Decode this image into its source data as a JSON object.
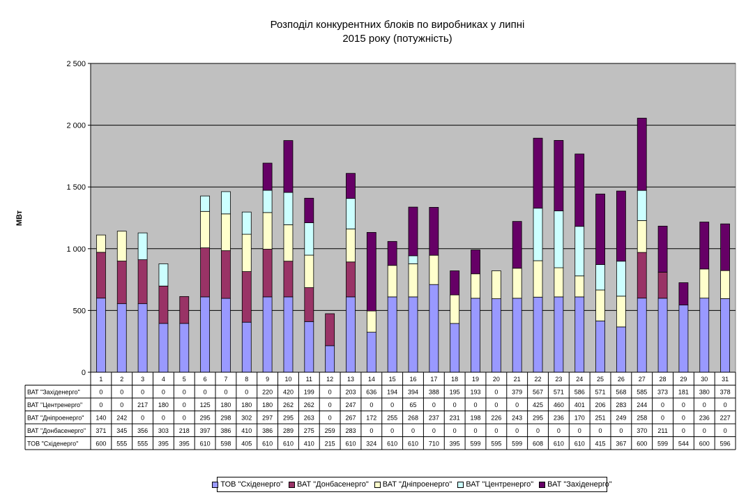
{
  "chart_data": {
    "type": "bar",
    "stacked": true,
    "title": "Розподіл конкурентних блоків по виробниках у липні\n2015 року (потужність)",
    "ylabel": "МВт",
    "xlabel": "",
    "ylim": [
      0,
      2500
    ],
    "yticks": [
      0,
      500,
      1000,
      1500,
      2000,
      2500
    ],
    "ytick_labels": [
      "0",
      "500",
      "1 000",
      "1 500",
      "2 000",
      "2 500"
    ],
    "grid": true,
    "legend_position": "bottom",
    "categories": [
      "1",
      "2",
      "3",
      "4",
      "5",
      "6",
      "7",
      "8",
      "9",
      "10",
      "11",
      "12",
      "13",
      "14",
      "15",
      "16",
      "17",
      "18",
      "19",
      "20",
      "21",
      "22",
      "23",
      "24",
      "25",
      "26",
      "27",
      "28",
      "29",
      "30",
      "31"
    ],
    "series": [
      {
        "name": "ТОВ \"Східенерго\"",
        "color": "#9999ff",
        "values": [
          600,
          555,
          555,
          395,
          395,
          610,
          598,
          405,
          610,
          610,
          410,
          215,
          610,
          324,
          610,
          610,
          710,
          395,
          599,
          595,
          599,
          608,
          610,
          610,
          415,
          367,
          600,
          599,
          544,
          600,
          596
        ]
      },
      {
        "name": "ВАТ \"Донбасенерго\"",
        "color": "#993366",
        "values": [
          371,
          345,
          356,
          303,
          218,
          397,
          386,
          410,
          386,
          289,
          275,
          259,
          283,
          0,
          0,
          0,
          0,
          0,
          0,
          0,
          0,
          0,
          0,
          0,
          0,
          0,
          370,
          211,
          0,
          0,
          0
        ]
      },
      {
        "name": "ВАТ \"Дніпроенерго\"",
        "color": "#ffffcc",
        "values": [
          140,
          242,
          0,
          0,
          0,
          295,
          298,
          302,
          297,
          295,
          263,
          0,
          267,
          172,
          255,
          268,
          237,
          231,
          198,
          226,
          243,
          295,
          236,
          170,
          251,
          249,
          258,
          0,
          0,
          236,
          227
        ]
      },
      {
        "name": "ВАТ \"Центренерго\"",
        "color": "#ccffff",
        "values": [
          0,
          0,
          217,
          180,
          0,
          125,
          180,
          180,
          180,
          262,
          262,
          0,
          247,
          0,
          0,
          65,
          0,
          0,
          0,
          0,
          0,
          425,
          460,
          401,
          206,
          283,
          244,
          0,
          0,
          0,
          0
        ]
      },
      {
        "name": "ВАТ \"Західенерго\"",
        "color": "#660066",
        "values": [
          0,
          0,
          0,
          0,
          0,
          0,
          0,
          0,
          220,
          420,
          199,
          0,
          203,
          636,
          194,
          394,
          388,
          195,
          193,
          0,
          379,
          567,
          571,
          586,
          571,
          568,
          585,
          373,
          181,
          380,
          378
        ]
      }
    ]
  },
  "colors": {
    "plot_background": "#c0c0c0",
    "gridline": "#000000"
  }
}
